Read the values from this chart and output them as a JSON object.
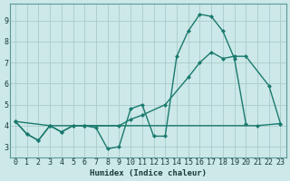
{
  "xlabel": "Humidex (Indice chaleur)",
  "xlim": [
    -0.5,
    23.5
  ],
  "ylim": [
    2.5,
    9.8
  ],
  "yticks": [
    3,
    4,
    5,
    6,
    7,
    8,
    9
  ],
  "xticks": [
    0,
    1,
    2,
    3,
    4,
    5,
    6,
    7,
    8,
    9,
    10,
    11,
    12,
    13,
    14,
    15,
    16,
    17,
    18,
    19,
    20,
    21,
    22,
    23
  ],
  "bg_color": "#cce8e8",
  "grid_color": "#aacccc",
  "line_color": "#1a7a6e",
  "series1_x": [
    0,
    1,
    2,
    3,
    4,
    5,
    6,
    7,
    8,
    9,
    10,
    11,
    12,
    13,
    14,
    15,
    16,
    17,
    18,
    19,
    20
  ],
  "series1_y": [
    4.2,
    3.6,
    3.3,
    4.0,
    3.7,
    4.0,
    4.0,
    3.9,
    2.9,
    3.0,
    4.8,
    5.0,
    3.5,
    3.5,
    7.3,
    8.5,
    9.3,
    9.2,
    8.5,
    7.2,
    4.1
  ],
  "series2_x": [
    0,
    1,
    2,
    3,
    4,
    5,
    6,
    9,
    10,
    11,
    13,
    15,
    16,
    17,
    18,
    19,
    20,
    22,
    23
  ],
  "series2_y": [
    4.2,
    3.6,
    3.3,
    4.0,
    3.7,
    4.0,
    4.0,
    4.0,
    4.3,
    4.5,
    5.0,
    6.3,
    7.0,
    7.5,
    7.2,
    7.3,
    7.3,
    5.9,
    4.1
  ],
  "series3_x": [
    0,
    3,
    6,
    21,
    23
  ],
  "series3_y": [
    4.2,
    4.0,
    4.0,
    4.0,
    4.1
  ]
}
